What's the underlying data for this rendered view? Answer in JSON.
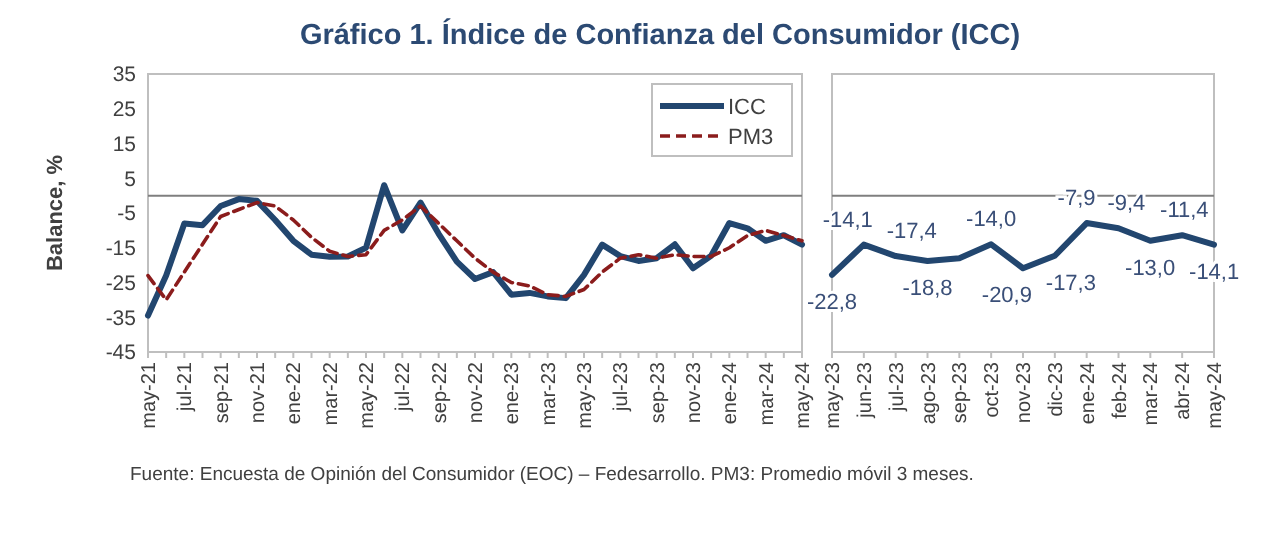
{
  "chart_data": [
    {
      "type": "line",
      "title": "Gráfico 1. Índice de Confianza del Consumidor (ICC)",
      "ylabel": "Balance, %",
      "annotations": [
        "Fuente: Encuesta de Opinión del Consumidor (EOC) – Fedesarrollo. PM3: Promedio móvil 3 meses."
      ],
      "categories": [
        "may-21",
        null,
        "jul-21",
        null,
        "sep-21",
        null,
        "nov-21",
        null,
        "ene-22",
        null,
        "mar-22",
        null,
        "may-22",
        null,
        "jul-22",
        null,
        "sep-22",
        null,
        "nov-22",
        null,
        "ene-23",
        null,
        "mar-23",
        null,
        "may-23",
        null,
        "jul-23",
        null,
        "sep-23",
        null,
        "nov-23",
        null,
        "ene-24",
        null,
        "mar-24",
        null,
        "may-24"
      ],
      "series": [
        {
          "name": "ICC",
          "color": "#22466f",
          "line_style": "solid",
          "values": [
            -34.5,
            -23,
            -8,
            -8.5,
            -3,
            -1,
            -1.5,
            -7,
            -13,
            -17,
            -17.6,
            -17.5,
            -15,
            3,
            -10,
            -2,
            -11,
            -19,
            -24,
            -22,
            -28.5,
            -28,
            -29,
            -29.5,
            -22.8,
            -14.1,
            -17.4,
            -18.8,
            -18,
            -14.0,
            -20.9,
            -17.3,
            -7.9,
            -9.4,
            -13.0,
            -11.4,
            -14.1
          ]
        },
        {
          "name": "PM3",
          "color": "#8b1c1c",
          "line_style": "dashed",
          "values": [
            -23,
            -30,
            -22,
            -14,
            -6,
            -4,
            -2,
            -3,
            -7,
            -12,
            -16,
            -17.5,
            -17,
            -10,
            -7,
            -3,
            -8,
            -13,
            -18,
            -22,
            -25,
            -26,
            -28.5,
            -29,
            -27,
            -22,
            -18,
            -17,
            -18,
            -17,
            -17.5,
            -17.5,
            -15,
            -11.5,
            -10,
            -11.5,
            -13
          ]
        }
      ],
      "ylim": [
        -45,
        35
      ],
      "yticks": [
        -45,
        -35,
        -25,
        -15,
        -5,
        5,
        15,
        25,
        35
      ],
      "ref_lines": [
        {
          "axis": "y",
          "value": 0,
          "color": "#7f7f7f"
        }
      ],
      "legend": "top right"
    },
    {
      "type": "line",
      "categories": [
        "may-23",
        "jun-23",
        "jul-23",
        "ago-23",
        "sep-23",
        "oct-23",
        "nov-23",
        "dic-23",
        "ene-24",
        "feb-24",
        "mar-24",
        "abr-24",
        "may-24"
      ],
      "series": [
        {
          "color": "#22466f",
          "line_style": "solid",
          "values": [
            -22.8,
            -14.1,
            -17.4,
            -18.8,
            -18,
            -14.0,
            -20.9,
            -17.3,
            -7.9,
            -9.4,
            -13.0,
            -11.4,
            -14.1
          ],
          "value_labels": [
            "-22,8",
            "-14,1",
            "-17,4",
            "-18,8",
            null,
            "-14,0",
            "-20,9",
            "-17,3",
            "-7,9",
            "-9,4",
            "-13,0",
            "-11,4",
            "-14,1"
          ]
        }
      ],
      "ylim": [
        -45,
        35
      ],
      "tick_labels": "x",
      "ref_lines": [
        {
          "axis": "y",
          "value": 0,
          "color": "#7f7f7f"
        }
      ]
    }
  ]
}
